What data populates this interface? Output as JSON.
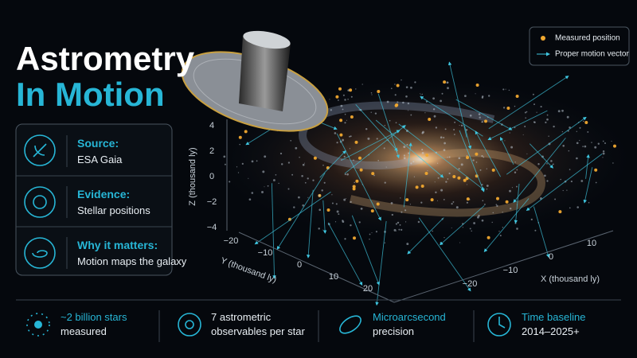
{
  "title": {
    "line1": "Astrometry",
    "line2": "In Motion"
  },
  "cards": [
    {
      "heading": "Source:",
      "text": "ESA Gaia"
    },
    {
      "heading": "Evidence:",
      "text": "Stellar positions"
    },
    {
      "heading": "Why it matters:",
      "text": "Motion maps the galaxy"
    }
  ],
  "legend": [
    {
      "label": "Measured position"
    },
    {
      "label": "Proper motion vector"
    }
  ],
  "axes": {
    "z": {
      "label": "Z (thousand ly)",
      "ticks": [
        "4",
        "2",
        "0",
        "−2",
        "−4"
      ]
    },
    "y": {
      "label": "Y (thousand ly)",
      "ticks": [
        "−20",
        "−10",
        "0",
        "10",
        "20"
      ]
    },
    "x": {
      "label": "X (thousand ly)",
      "ticks": [
        "−20",
        "−10",
        "0",
        "10"
      ]
    }
  },
  "stats": [
    {
      "line1": "~2 billion stars",
      "line2": "measured"
    },
    {
      "line1": "7 astrometric",
      "line2": "observables per star"
    },
    {
      "line1": "Microarcsecond",
      "line2": "precision"
    },
    {
      "line1": "Time baseline",
      "line2": "2014–2025+"
    }
  ]
}
